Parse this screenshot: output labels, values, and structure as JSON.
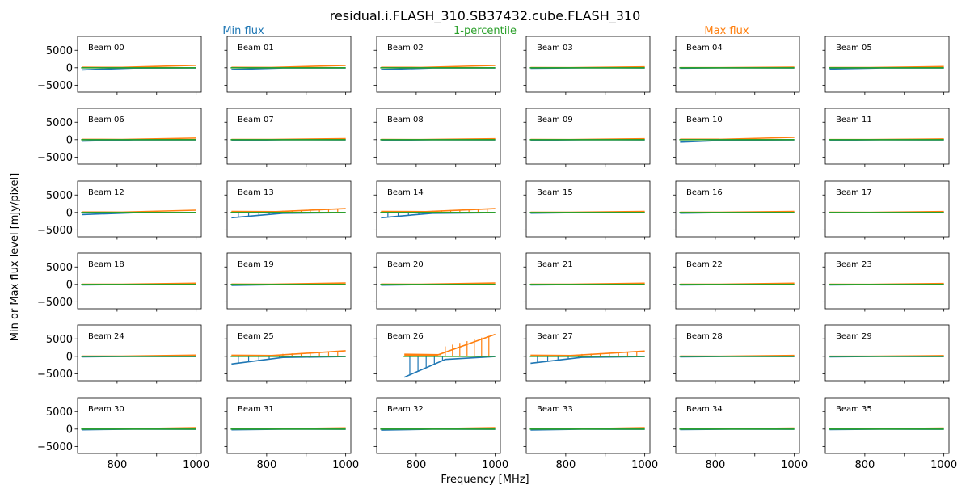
{
  "chart_data": {
    "type": "line",
    "title": "residual.i.FLASH_310.SB37432.cube.FLASH_310",
    "xlabel": "Frequency [MHz]",
    "ylabel": "Min or Max flux level [mJy/pixel]",
    "xlim": [
      700,
      1013
    ],
    "ylim": [
      -7000,
      9000
    ],
    "xticks": [
      800,
      900,
      1000
    ],
    "xtick_labels": [
      "800",
      "1000"
    ],
    "yticks": [
      5000,
      0,
      -5000
    ],
    "ytick_labels": [
      "5000",
      "0",
      "−5000"
    ],
    "grid": false,
    "legend_position": "top",
    "series": [
      {
        "name": "Min flux",
        "color": "#1f77b4"
      },
      {
        "name": "1-percentile",
        "color": "#2ca02c"
      },
      {
        "name": "Max flux",
        "color": "#ff7f0e"
      }
    ],
    "panels": [
      {
        "label": "Beam 00",
        "f_start": 711,
        "min_start": -600,
        "max_end": 700
      },
      {
        "label": "Beam 01",
        "f_start": 711,
        "min_start": -500,
        "max_end": 650
      },
      {
        "label": "Beam 02",
        "f_start": 711,
        "min_start": -500,
        "max_end": 650
      },
      {
        "label": "Beam 03",
        "f_start": 711,
        "min_start": -150,
        "max_end": 250
      },
      {
        "label": "Beam 04",
        "f_start": 711,
        "min_start": -120,
        "max_end": 180
      },
      {
        "label": "Beam 05",
        "f_start": 711,
        "min_start": -350,
        "max_end": 350
      },
      {
        "label": "Beam 06",
        "f_start": 711,
        "min_start": -400,
        "max_end": 450
      },
      {
        "label": "Beam 07",
        "f_start": 711,
        "min_start": -200,
        "max_end": 300
      },
      {
        "label": "Beam 08",
        "f_start": 711,
        "min_start": -200,
        "max_end": 250
      },
      {
        "label": "Beam 09",
        "f_start": 711,
        "min_start": -150,
        "max_end": 250
      },
      {
        "label": "Beam 10",
        "f_start": 711,
        "min_start": -700,
        "max_end": 650
      },
      {
        "label": "Beam 11",
        "f_start": 711,
        "min_start": -150,
        "max_end": 200
      },
      {
        "label": "Beam 12",
        "f_start": 711,
        "min_start": -600,
        "max_end": 650
      },
      {
        "label": "Beam 13",
        "f_start": 711,
        "min_start": -1500,
        "max_end": 1100
      },
      {
        "label": "Beam 14",
        "f_start": 711,
        "min_start": -1500,
        "max_end": 1100
      },
      {
        "label": "Beam 15",
        "f_start": 711,
        "min_start": -200,
        "max_end": 300
      },
      {
        "label": "Beam 16",
        "f_start": 711,
        "min_start": -200,
        "max_end": 300
      },
      {
        "label": "Beam 17",
        "f_start": 711,
        "min_start": -100,
        "max_end": 250
      },
      {
        "label": "Beam 18",
        "f_start": 711,
        "min_start": -150,
        "max_end": 350
      },
      {
        "label": "Beam 19",
        "f_start": 711,
        "min_start": -250,
        "max_end": 400
      },
      {
        "label": "Beam 20",
        "f_start": 711,
        "min_start": -200,
        "max_end": 400
      },
      {
        "label": "Beam 21",
        "f_start": 711,
        "min_start": -150,
        "max_end": 350
      },
      {
        "label": "Beam 22",
        "f_start": 711,
        "min_start": -150,
        "max_end": 350
      },
      {
        "label": "Beam 23",
        "f_start": 711,
        "min_start": -150,
        "max_end": 250
      },
      {
        "label": "Beam 24",
        "f_start": 711,
        "min_start": -150,
        "max_end": 350
      },
      {
        "label": "Beam 25",
        "f_start": 711,
        "min_start": -2200,
        "max_end": 1600
      },
      {
        "label": "Beam 26",
        "f_start": 770,
        "min_start": -6000,
        "max_end": 6300
      },
      {
        "label": "Beam 27",
        "f_start": 711,
        "min_start": -2000,
        "max_end": 1500
      },
      {
        "label": "Beam 28",
        "f_start": 711,
        "min_start": -150,
        "max_end": 250
      },
      {
        "label": "Beam 29",
        "f_start": 711,
        "min_start": -150,
        "max_end": 200
      },
      {
        "label": "Beam 30",
        "f_start": 711,
        "min_start": -200,
        "max_end": 400
      },
      {
        "label": "Beam 31",
        "f_start": 711,
        "min_start": -200,
        "max_end": 350
      },
      {
        "label": "Beam 32",
        "f_start": 711,
        "min_start": -300,
        "max_end": 400
      },
      {
        "label": "Beam 33",
        "f_start": 711,
        "min_start": -250,
        "max_end": 400
      },
      {
        "label": "Beam 34",
        "f_start": 711,
        "min_start": -150,
        "max_end": 300
      },
      {
        "label": "Beam 35",
        "f_start": 711,
        "min_start": -150,
        "max_end": 300
      }
    ]
  }
}
